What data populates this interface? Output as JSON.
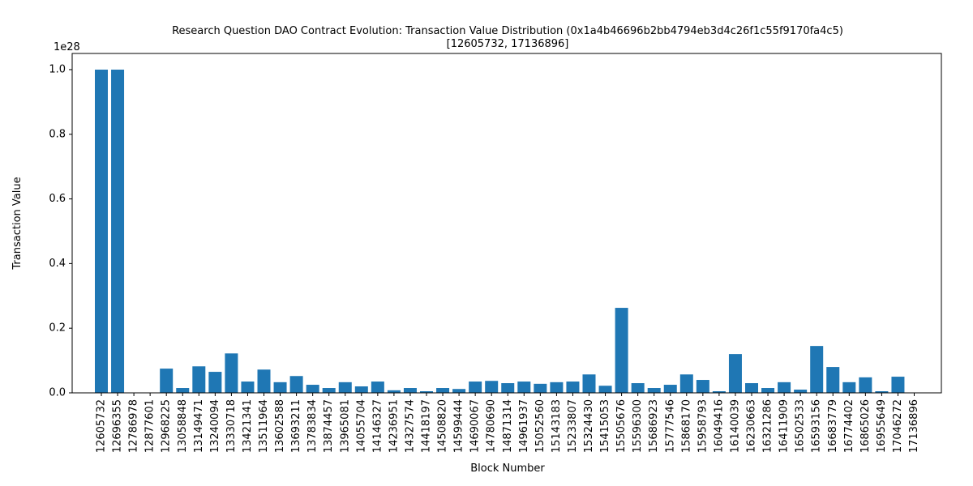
{
  "chart_data": {
    "type": "bar",
    "title": "Research Question DAO Contract Evolution: Transaction Value Distribution (0x1a4b46696b2bb4794eb3d4c26f1c55f9170fa4c5)",
    "subtitle": "[12605732, 17136896]",
    "xlabel": "Block Number",
    "ylabel": "Transaction Value",
    "y_offset_label": "1e28",
    "ylim": [
      0,
      1.05
    ],
    "y_ticks": [
      0.0,
      0.2,
      0.4,
      0.6,
      0.8,
      1.0
    ],
    "y_tick_labels": [
      "0.0",
      "0.2",
      "0.4",
      "0.6",
      "0.8",
      "1.0"
    ],
    "bar_color": "#1f77b4",
    "grid": false,
    "categories": [
      "12605732",
      "12696355",
      "12786978",
      "12877601",
      "12968225",
      "13058848",
      "13149471",
      "13240094",
      "13330718",
      "13421341",
      "13511964",
      "13602588",
      "13693211",
      "13783834",
      "13874457",
      "13965081",
      "14055704",
      "14146327",
      "14236951",
      "14327574",
      "14418197",
      "14508820",
      "14599444",
      "14690067",
      "14780690",
      "14871314",
      "14961937",
      "15052560",
      "15143183",
      "15233807",
      "15324430",
      "15415053",
      "15505676",
      "15596300",
      "15686923",
      "15777546",
      "15868170",
      "15958793",
      "16049416",
      "16140039",
      "16230663",
      "16321286",
      "16411909",
      "16502533",
      "16593156",
      "16683779",
      "16774402",
      "16865026",
      "16955649",
      "17046272",
      "17136896"
    ],
    "values": [
      1.0,
      1.0,
      0.0,
      0.0,
      0.075,
      0.015,
      0.082,
      0.065,
      0.122,
      0.035,
      0.072,
      0.033,
      0.052,
      0.025,
      0.015,
      0.033,
      0.02,
      0.035,
      0.008,
      0.015,
      0.005,
      0.015,
      0.012,
      0.035,
      0.037,
      0.03,
      0.035,
      0.028,
      0.033,
      0.035,
      0.057,
      0.022,
      0.263,
      0.03,
      0.015,
      0.025,
      0.057,
      0.04,
      0.005,
      0.12,
      0.03,
      0.015,
      0.033,
      0.01,
      0.145,
      0.08,
      0.033,
      0.048,
      0.005,
      0.05,
      0.0
    ]
  }
}
